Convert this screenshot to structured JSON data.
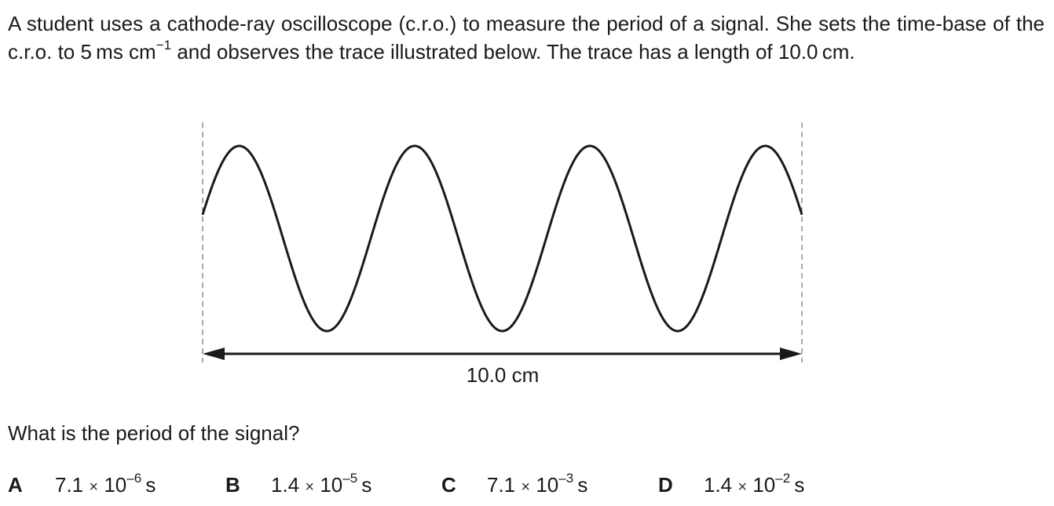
{
  "intro": {
    "part1": "A student uses a cathode-ray oscilloscope (c.r.o.) to measure the period of a signal. She sets the time-base of the c.r.o. to 5",
    "unit_main": "ms cm",
    "unit_exp": "−1",
    "part2": " and observes the trace illustrated below. The trace has a length of 10.0",
    "part3": "cm."
  },
  "diagram": {
    "length_label": "10.0 cm",
    "cycles": 3.5,
    "trace_length_cm": 10.0
  },
  "question": "What is the period of the signal?",
  "options": [
    {
      "letter": "A",
      "mantissa": "7.1",
      "times": "×",
      "base": "10",
      "exponent": "–6",
      "unit": "s"
    },
    {
      "letter": "B",
      "mantissa": "1.4",
      "times": "×",
      "base": "10",
      "exponent": "–5",
      "unit": "s"
    },
    {
      "letter": "C",
      "mantissa": "7.1",
      "times": "×",
      "base": "10",
      "exponent": "–3",
      "unit": "s"
    },
    {
      "letter": "D",
      "mantissa": "1.4",
      "times": "×",
      "base": "10",
      "exponent": "–2",
      "unit": "s"
    }
  ]
}
